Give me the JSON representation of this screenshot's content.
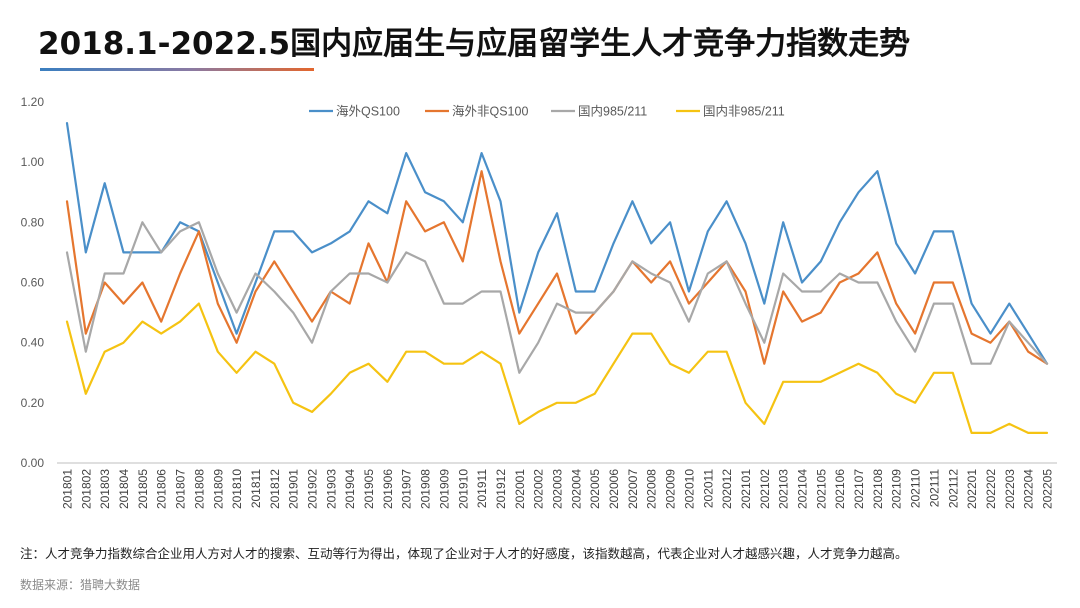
{
  "title": "2018.1-2022.5国内应届生与应届留学生人才竞争力指数走势",
  "footnote": "注：人才竞争力指数综合企业用人方对人才的搜索、互动等行为得出，体现了企业对于人才的好感度，该指数越高，代表企业对人才越感兴趣，人才竞争力越高。",
  "source": "数据来源：猎聘大数据",
  "chart_data": {
    "type": "line",
    "ylim": [
      0,
      1.2
    ],
    "yticks": [
      "0.00",
      "0.20",
      "0.40",
      "0.60",
      "0.80",
      "1.00",
      "1.20"
    ],
    "legend_position": "top",
    "grid": false,
    "categories": [
      "201801",
      "201802",
      "201803",
      "201804",
      "201805",
      "201806",
      "201807",
      "201808",
      "201809",
      "201810",
      "201811",
      "201812",
      "201901",
      "201902",
      "201903",
      "201904",
      "201905",
      "201906",
      "201907",
      "201908",
      "201909",
      "201910",
      "201911",
      "201912",
      "202001",
      "202002",
      "202003",
      "202004",
      "202005",
      "202006",
      "202007",
      "202008",
      "202009",
      "202010",
      "202011",
      "202012",
      "202101",
      "202102",
      "202103",
      "202104",
      "202105",
      "202106",
      "202107",
      "202108",
      "202109",
      "202110",
      "202111",
      "202112",
      "202201",
      "202202",
      "202203",
      "202204",
      "202205"
    ],
    "series": [
      {
        "name": "海外QS100",
        "color": "#4a8fc9",
        "values": [
          1.13,
          0.7,
          0.93,
          0.7,
          0.7,
          0.7,
          0.8,
          0.77,
          0.6,
          0.43,
          0.6,
          0.77,
          0.77,
          0.7,
          0.73,
          0.77,
          0.87,
          0.83,
          1.03,
          0.9,
          0.87,
          0.8,
          1.03,
          0.87,
          0.5,
          0.7,
          0.83,
          0.57,
          0.57,
          0.73,
          0.87,
          0.73,
          0.8,
          0.57,
          0.77,
          0.87,
          0.73,
          0.53,
          0.8,
          0.6,
          0.67,
          0.8,
          0.9,
          0.97,
          0.73,
          0.63,
          0.77,
          0.77,
          0.53,
          0.43,
          0.53,
          0.43,
          0.33
        ]
      },
      {
        "name": "海外非QS100",
        "color": "#e5762f",
        "values": [
          0.87,
          0.43,
          0.6,
          0.53,
          0.6,
          0.47,
          0.63,
          0.77,
          0.53,
          0.4,
          0.57,
          0.67,
          0.57,
          0.47,
          0.57,
          0.53,
          0.73,
          0.6,
          0.87,
          0.77,
          0.8,
          0.67,
          0.97,
          0.67,
          0.43,
          0.53,
          0.63,
          0.43,
          0.5,
          0.57,
          0.67,
          0.6,
          0.67,
          0.53,
          0.6,
          0.67,
          0.57,
          0.33,
          0.57,
          0.47,
          0.5,
          0.6,
          0.63,
          0.7,
          0.53,
          0.43,
          0.6,
          0.6,
          0.43,
          0.4,
          0.47,
          0.37,
          0.33
        ]
      },
      {
        "name": "国内985/211",
        "color": "#a8a8a8",
        "values": [
          0.7,
          0.37,
          0.63,
          0.63,
          0.8,
          0.7,
          0.77,
          0.8,
          0.63,
          0.5,
          0.63,
          0.57,
          0.5,
          0.4,
          0.57,
          0.63,
          0.63,
          0.6,
          0.7,
          0.67,
          0.53,
          0.53,
          0.57,
          0.57,
          0.3,
          0.4,
          0.53,
          0.5,
          0.5,
          0.57,
          0.67,
          0.63,
          0.6,
          0.47,
          0.63,
          0.67,
          0.53,
          0.4,
          0.63,
          0.57,
          0.57,
          0.63,
          0.6,
          0.6,
          0.47,
          0.37,
          0.53,
          0.53,
          0.33,
          0.33,
          0.47,
          0.4,
          0.33
        ]
      },
      {
        "name": "国内非985/211",
        "color": "#f5c312",
        "values": [
          0.47,
          0.23,
          0.37,
          0.4,
          0.47,
          0.43,
          0.47,
          0.53,
          0.37,
          0.3,
          0.37,
          0.33,
          0.2,
          0.17,
          0.23,
          0.3,
          0.33,
          0.27,
          0.37,
          0.37,
          0.33,
          0.33,
          0.37,
          0.33,
          0.13,
          0.17,
          0.2,
          0.2,
          0.23,
          0.33,
          0.43,
          0.43,
          0.33,
          0.3,
          0.37,
          0.37,
          0.2,
          0.13,
          0.27,
          0.27,
          0.27,
          0.3,
          0.33,
          0.3,
          0.23,
          0.2,
          0.3,
          0.3,
          0.1,
          0.1,
          0.13,
          0.1,
          0.1
        ]
      }
    ]
  }
}
